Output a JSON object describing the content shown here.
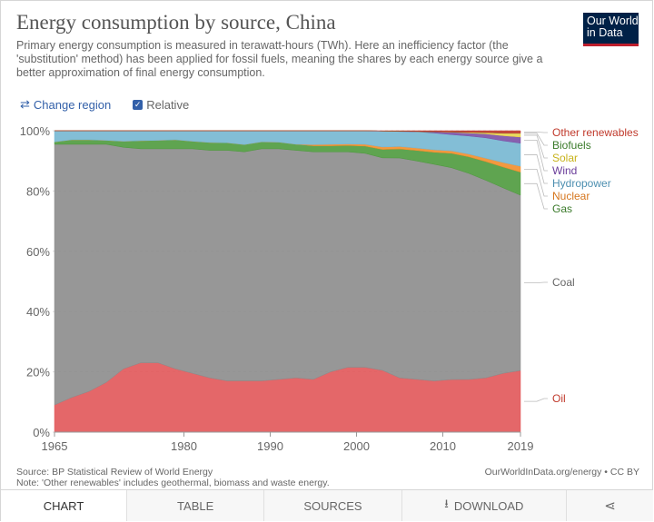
{
  "header": {
    "title": "Energy consumption by source, China",
    "subtitle": "Primary energy consumption is measured in terawatt-hours (TWh). Here an inefficiency factor (the 'substitution' method) has been applied for fossil fuels, meaning the shares by each energy source give a better approximation of final energy consumption.",
    "logo_line1": "Our World",
    "logo_line2": "in Data"
  },
  "controls": {
    "change_region_icon": "swap-arrows-icon",
    "change_region_label": "Change region",
    "relative_label": "Relative",
    "relative_checked": true
  },
  "chart_data": {
    "type": "area",
    "stacked": true,
    "relative": true,
    "x": [
      1965,
      1967,
      1969,
      1971,
      1973,
      1975,
      1977,
      1979,
      1981,
      1983,
      1985,
      1987,
      1989,
      1991,
      1993,
      1995,
      1997,
      1999,
      2001,
      2003,
      2005,
      2007,
      2009,
      2011,
      2013,
      2015,
      2017,
      2019
    ],
    "series": [
      {
        "name": "Oil",
        "color": "#e15759",
        "values": [
          9,
          11.5,
          13.5,
          16.5,
          21,
          23,
          23,
          21,
          19.5,
          18,
          17,
          17,
          17,
          17.5,
          18,
          17.5,
          20,
          21.5,
          21.5,
          20.5,
          18,
          17.5,
          17,
          17.5,
          17.5,
          18,
          19.5,
          20
        ]
      },
      {
        "name": "Coal",
        "color": "#8c8c8c",
        "values": [
          86.5,
          84,
          82,
          79,
          73.5,
          71,
          71,
          73,
          74.5,
          75.5,
          76.5,
          76,
          77,
          76.5,
          75.5,
          75.5,
          73,
          71.5,
          71,
          70.5,
          73,
          72.5,
          72,
          70.5,
          68.5,
          65.5,
          61.5,
          57
        ]
      },
      {
        "name": "Gas",
        "color": "#4e9a3d",
        "values": [
          0.8,
          1.5,
          1.5,
          1.3,
          2,
          2.7,
          2.8,
          3,
          2.5,
          2.6,
          2.5,
          2.4,
          2.3,
          2.2,
          2,
          2,
          2,
          2.1,
          2.4,
          2.8,
          3,
          3.5,
          4,
          4.8,
          5.5,
          6.2,
          6.9,
          7.5
        ]
      },
      {
        "name": "Nuclear",
        "color": "#f28e2b",
        "values": [
          0,
          0,
          0,
          0,
          0,
          0,
          0,
          0,
          0,
          0,
          0,
          0,
          0,
          0,
          0,
          0.4,
          0.5,
          0.5,
          0.6,
          0.8,
          0.8,
          0.8,
          0.8,
          0.8,
          0.9,
          1.1,
          1.5,
          1.9
        ]
      },
      {
        "name": "Hydropower",
        "color": "#76b7d2",
        "values": [
          3.7,
          3,
          3,
          3.2,
          3.5,
          3.3,
          3.2,
          3,
          3.5,
          3.9,
          4,
          4.6,
          3.7,
          3.8,
          4.5,
          4.6,
          4.5,
          4.4,
          4.5,
          5.3,
          5,
          5.4,
          5.6,
          5.4,
          6,
          6.8,
          7.2,
          7.5
        ]
      },
      {
        "name": "Wind",
        "color": "#7b4fa6",
        "values": [
          0,
          0,
          0,
          0,
          0,
          0,
          0,
          0,
          0,
          0,
          0,
          0,
          0,
          0,
          0,
          0,
          0,
          0,
          0,
          0,
          0.05,
          0.1,
          0.4,
          0.8,
          1,
          1.3,
          1.7,
          2
        ]
      },
      {
        "name": "Solar",
        "color": "#e8d44d",
        "values": [
          0,
          0,
          0,
          0,
          0,
          0,
          0,
          0,
          0,
          0,
          0,
          0,
          0,
          0,
          0,
          0,
          0,
          0,
          0,
          0,
          0,
          0,
          0,
          0.05,
          0.2,
          0.4,
          0.8,
          1.2
        ]
      },
      {
        "name": "Biofuels",
        "color": "#5a8e3a",
        "values": [
          0,
          0,
          0,
          0,
          0,
          0,
          0,
          0,
          0,
          0,
          0,
          0,
          0,
          0,
          0,
          0,
          0,
          0,
          0,
          0,
          0.05,
          0.05,
          0.05,
          0.05,
          0.05,
          0.05,
          0.05,
          0.05
        ]
      },
      {
        "name": "Other renewables",
        "color": "#c0392b",
        "values": [
          0,
          0,
          0,
          0,
          0,
          0,
          0,
          0,
          0,
          0,
          0,
          0,
          0,
          0,
          0,
          0,
          0,
          0,
          0,
          0.1,
          0.15,
          0.2,
          0.3,
          0.4,
          0.5,
          0.6,
          0.8,
          0.8
        ]
      }
    ],
    "ylim": [
      0,
      100
    ],
    "y_ticks": [
      "0%",
      "20%",
      "40%",
      "60%",
      "80%",
      "100%"
    ],
    "x_ticks": [
      "1965",
      "1980",
      "1990",
      "2000",
      "2010",
      "2019"
    ],
    "grid": "horizontal dashed"
  },
  "footer": {
    "source": "Source: BP Statistical Review of World Energy",
    "note": "Note: 'Other renewables' includes geothermal, biomass and waste energy.",
    "credit": "OurWorldInData.org/energy • CC BY"
  },
  "tabs": {
    "chart": "CHART",
    "table": "TABLE",
    "sources": "SOURCES",
    "download": "DOWNLOAD",
    "download_icon": "download-icon",
    "share_icon": "share-icon"
  }
}
